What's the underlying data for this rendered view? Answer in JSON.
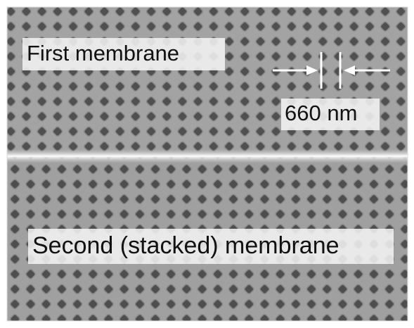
{
  "labels": {
    "top": "First membrane",
    "scale": "660 nm",
    "bottom": "Second (stacked) membrane"
  }
}
